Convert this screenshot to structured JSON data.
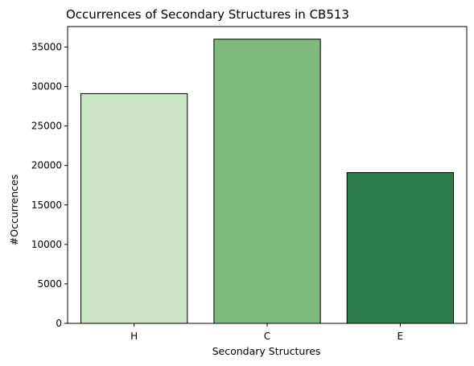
{
  "chart_data": {
    "type": "bar",
    "title": "Occurrences of Secondary Structures in CB513",
    "xlabel": "Secondary Structures",
    "ylabel": "#Occurrences",
    "categories": [
      "H",
      "C",
      "E"
    ],
    "values": [
      29100,
      36000,
      19100
    ],
    "colors": [
      "#cce5c5",
      "#7fba7e",
      "#2e7d4a"
    ],
    "ylim": [
      0,
      37600
    ],
    "yticks": [
      0,
      5000,
      10000,
      15000,
      20000,
      25000,
      30000,
      35000
    ],
    "grid": false,
    "legend": "none"
  }
}
